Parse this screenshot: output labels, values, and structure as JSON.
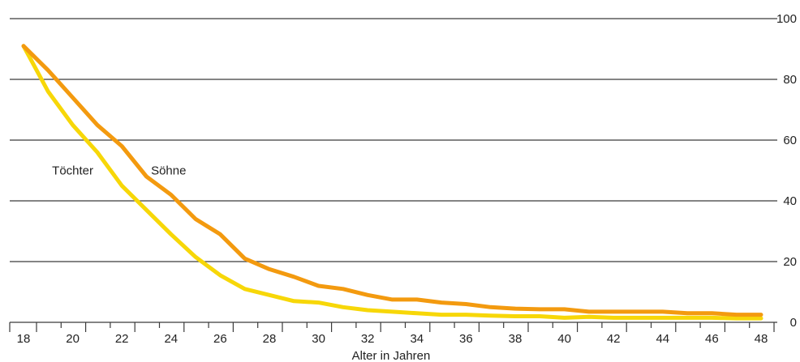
{
  "chart_data": {
    "type": "line",
    "xlabel": "Alter in Jahren",
    "ylabel": "",
    "xlim": [
      18,
      48
    ],
    "ylim": [
      0,
      100
    ],
    "x_ticks": [
      18,
      20,
      22,
      24,
      26,
      28,
      30,
      32,
      34,
      36,
      38,
      40,
      42,
      44,
      46,
      48
    ],
    "y_ticks": [
      0,
      20,
      40,
      60,
      80,
      100
    ],
    "grid": "horizontal",
    "y_axis_side": "right",
    "x": [
      18,
      19,
      20,
      21,
      22,
      23,
      24,
      25,
      26,
      27,
      28,
      29,
      30,
      31,
      32,
      33,
      34,
      35,
      36,
      37,
      38,
      39,
      40,
      41,
      42,
      43,
      44,
      45,
      46,
      47,
      48
    ],
    "series": [
      {
        "name": "Söhne",
        "color": "#f39a0f",
        "values": [
          91,
          83,
          74,
          65,
          58,
          48,
          42,
          34,
          29,
          21,
          17.5,
          15,
          12,
          11,
          9,
          7.5,
          7.5,
          6.5,
          6,
          5,
          4.5,
          4.3,
          4.3,
          3.5,
          3.5,
          3.5,
          3.5,
          3,
          3,
          2.5,
          2.5
        ]
      },
      {
        "name": "Töchter",
        "color": "#f7d708",
        "values": [
          91,
          76,
          65,
          56,
          45,
          37,
          29,
          21.5,
          15.5,
          11,
          9,
          7,
          6.5,
          5,
          4,
          3.5,
          3,
          2.5,
          2.5,
          2.2,
          2,
          2,
          1.5,
          1.8,
          1.5,
          1.5,
          1.5,
          1.5,
          1.5,
          1.3,
          1.3
        ]
      }
    ],
    "annotations": [
      {
        "text": "Töchter",
        "x": 20.0,
        "y": 50
      },
      {
        "text": "Söhne",
        "x": 23.9,
        "y": 50
      }
    ]
  }
}
